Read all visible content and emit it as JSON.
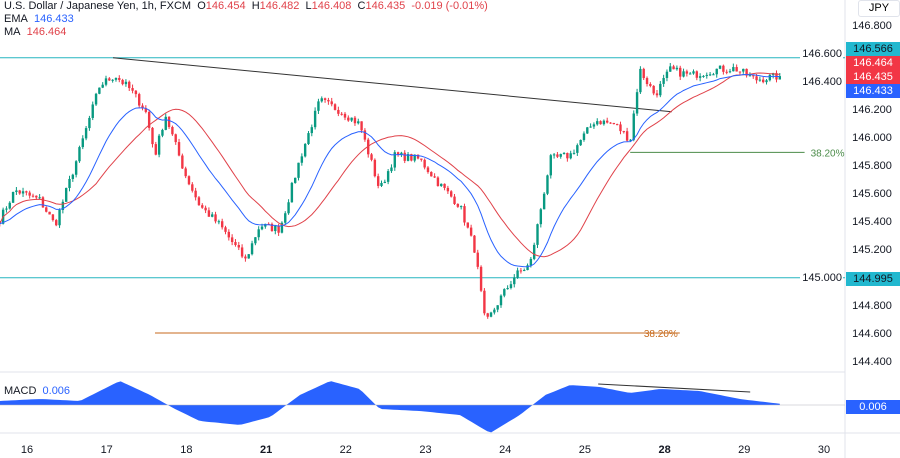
{
  "header": {
    "symbol": "U.S. Dollar / Japanese Yen, 1h, FXCM",
    "o_label": "O",
    "o": "146.454",
    "h_label": "H",
    "h": "146.482",
    "l_label": "L",
    "l": "146.408",
    "c_label": "C",
    "c": "146.435",
    "change": "-0.019 (-0.01%)",
    "ema_label": "EMA",
    "ema": "146.433",
    "ma_label": "MA",
    "ma": "146.464",
    "currency": "JPY"
  },
  "macd": {
    "label": "MACD",
    "value": "0.006"
  },
  "colors": {
    "up": "#089981",
    "down": "#f23645",
    "ema": "#2962ff",
    "ma": "#e0424a",
    "level": "#26b5c0",
    "fib_green": "#4c8c4a",
    "fib_orange": "#c76a1c",
    "macd": "#2962ff"
  },
  "price_labels": [
    {
      "text": "146.566",
      "color": "#22b8cf"
    },
    {
      "text": "146.464",
      "color": "#f23645"
    },
    {
      "text": "146.435",
      "color": "#f23645"
    },
    {
      "text": "146.433",
      "color": "#2962ff"
    },
    {
      "text": "144.995",
      "color": "#22b8cf"
    },
    {
      "text": "0.006",
      "color": "#2962ff"
    }
  ],
  "chart_data": {
    "type": "candlestick",
    "title": "U.S. Dollar / Japanese Yen, 1h, FXCM",
    "yticks": [
      "146.800",
      "146.600",
      "146.400",
      "146.200",
      "146.000",
      "145.800",
      "145.600",
      "145.400",
      "145.200",
      "145.000",
      "144.800",
      "144.600",
      "144.400"
    ],
    "ylim": [
      144.3,
      146.9
    ],
    "xticks": [
      "16",
      "17",
      "18",
      "21",
      "22",
      "23",
      "24",
      "25",
      "28",
      "29",
      "30"
    ],
    "xlim": [
      -0.34,
      10.2
    ],
    "price_path": [
      [
        -0.34,
        145.41
      ],
      [
        -0.15,
        145.62
      ],
      [
        0.16,
        145.55
      ],
      [
        0.35,
        145.37
      ],
      [
        0.6,
        145.8
      ],
      [
        0.91,
        146.37
      ],
      [
        1.1,
        146.44
      ],
      [
        1.29,
        146.34
      ],
      [
        1.48,
        146.19
      ],
      [
        1.6,
        145.87
      ],
      [
        1.73,
        146.16
      ],
      [
        1.98,
        145.73
      ],
      [
        2.16,
        145.51
      ],
      [
        2.41,
        145.37
      ],
      [
        2.73,
        145.12
      ],
      [
        2.91,
        145.37
      ],
      [
        3.16,
        145.34
      ],
      [
        3.41,
        145.84
      ],
      [
        3.66,
        146.26
      ],
      [
        3.91,
        146.19
      ],
      [
        4.16,
        146.09
      ],
      [
        4.41,
        145.62
      ],
      [
        4.6,
        145.87
      ],
      [
        4.91,
        145.84
      ],
      [
        5.16,
        145.66
      ],
      [
        5.41,
        145.51
      ],
      [
        5.6,
        145.19
      ],
      [
        5.73,
        144.66
      ],
      [
        5.91,
        144.84
      ],
      [
        6.1,
        145.01
      ],
      [
        6.29,
        145.09
      ],
      [
        6.54,
        145.84
      ],
      [
        6.79,
        145.87
      ],
      [
        7.1,
        146.12
      ],
      [
        7.35,
        146.09
      ],
      [
        7.54,
        145.98
      ],
      [
        7.66,
        146.48
      ],
      [
        7.85,
        146.3
      ],
      [
        8.04,
        146.48
      ],
      [
        8.29,
        146.44
      ],
      [
        8.6,
        146.48
      ],
      [
        8.85,
        146.49
      ],
      [
        9.1,
        146.41
      ],
      [
        9.41,
        146.435
      ]
    ],
    "macd_path": [
      [
        -0.34,
        0.02
      ],
      [
        0.16,
        0.03
      ],
      [
        0.66,
        0.02
      ],
      [
        1.16,
        0.12
      ],
      [
        1.54,
        0.05
      ],
      [
        1.85,
        -0.02
      ],
      [
        2.16,
        -0.08
      ],
      [
        2.66,
        -0.1
      ],
      [
        3.04,
        -0.06
      ],
      [
        3.41,
        0.05
      ],
      [
        3.79,
        0.12
      ],
      [
        4.16,
        0.08
      ],
      [
        4.41,
        -0.02
      ],
      [
        4.91,
        -0.03
      ],
      [
        5.41,
        -0.05
      ],
      [
        5.79,
        -0.14
      ],
      [
        6.16,
        -0.05
      ],
      [
        6.48,
        0.05
      ],
      [
        6.79,
        0.1
      ],
      [
        7.16,
        0.09
      ],
      [
        7.54,
        0.06
      ],
      [
        7.91,
        0.08
      ],
      [
        8.41,
        0.07
      ],
      [
        8.91,
        0.03
      ],
      [
        9.41,
        0.006
      ]
    ],
    "levels": [
      {
        "price": 146.566
      },
      {
        "price": 144.995
      }
    ],
    "trendline": [
      [
        1.075,
        146.566
      ],
      [
        8.06,
        146.18
      ]
    ],
    "fib": [
      {
        "label": "38.20%",
        "price": 145.89,
        "from": 7.54,
        "to": 9.72
      },
      {
        "label": "38.20%",
        "price": 144.6,
        "from": 1.6,
        "to": 8.16
      }
    ],
    "macd_trendline": [
      [
        7.14,
        0.105
      ],
      [
        9.04,
        0.065
      ]
    ]
  }
}
